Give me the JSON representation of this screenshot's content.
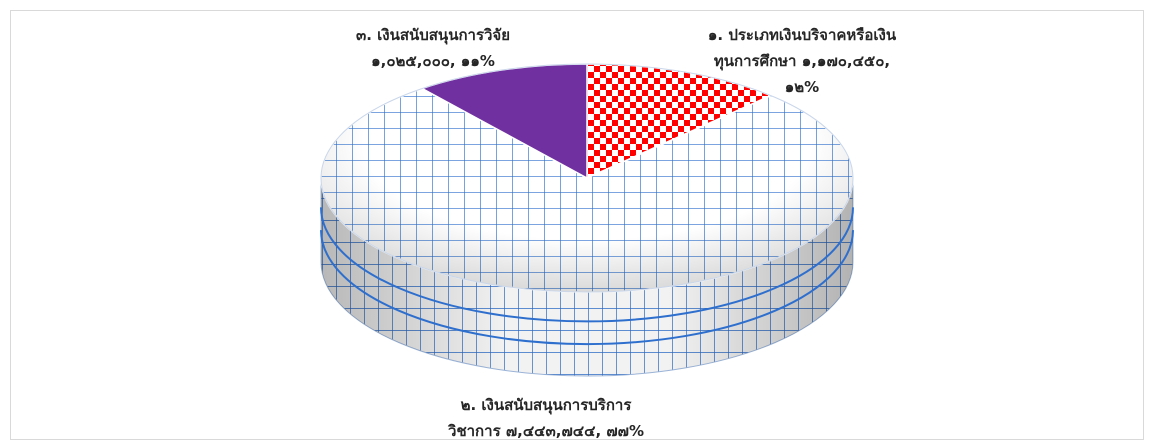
{
  "chart_data": {
    "type": "pie",
    "style": "3d-pie",
    "title": "",
    "slices": [
      {
        "category": "๑. ประเภทเงินบริจาคหรือเงินทุนการศึกษา",
        "value": 1170450,
        "percent": 12,
        "value_text": "๑,๑๗๐,๔๕๐",
        "percent_text": "๑๒%",
        "pattern": "red-checker"
      },
      {
        "category": "๒. เงินสนับสนุนการบริการวิชาการ",
        "value": 7443744,
        "percent": 77,
        "value_text": "๗,๔๔๓,๗๔๔",
        "percent_text": "๗๗%",
        "pattern": "blue-grid"
      },
      {
        "category": "๓. เงินสนับสนุนการวิจัย",
        "value": 1025000,
        "percent": 11,
        "value_text": "๑,๐๒๕,๐๐๐",
        "percent_text": "๑๑%",
        "pattern": "solid-purple"
      }
    ],
    "legend": "none",
    "colors": {
      "checker_red": "#ff0000",
      "grid_blue": "#1f5fbf",
      "purple": "#7030a0"
    }
  },
  "labels": {
    "slice1_line1": "๑. ประเภทเงินบริจาคหรือเงิน",
    "slice1_line2": "ทุนการศึกษา ๑,๑๗๐,๔๕๐,",
    "slice1_line3": "๑๒%",
    "slice2_line1": "๒. เงินสนับสนุนการบริการ",
    "slice2_line2": "วิชาการ ๗,๔๔๓,๗๔๔, ๗๗%",
    "slice3_line1": "๓. เงินสนับสนุนการวิจัย",
    "slice3_line2": "๑,๐๒๕,๐๐๐, ๑๑%"
  }
}
